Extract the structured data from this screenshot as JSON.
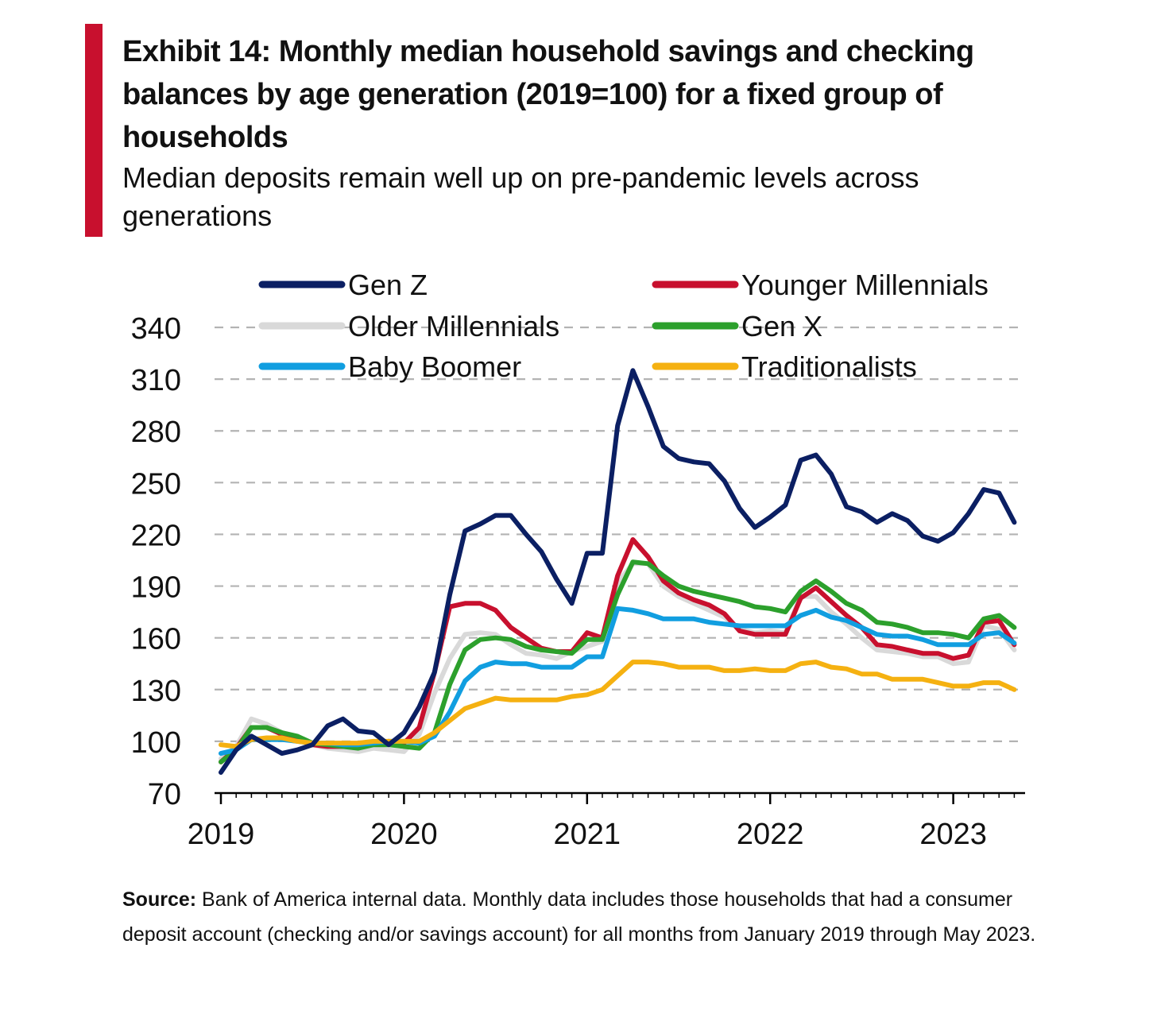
{
  "title": "Exhibit 14: Monthly median household savings and checking balances by age generation (2019=100) for a fixed group of households",
  "subtitle": "Median deposits remain well up on pre-pandemic levels across generations",
  "source_label": "Source:",
  "source_text": "Bank of America internal data. Monthly data includes those households that had a consumer deposit account (checking and/or savings account) for all months from January 2019 through May 2023.",
  "colors": {
    "accent": "#c8102e",
    "grid": "#b3b3b3",
    "axis": "#000000"
  },
  "chart_data": {
    "type": "line",
    "title": "Exhibit 14: Monthly median household savings and checking balances by age generation (2019=100) for a fixed group of households",
    "subtitle": "Median deposits remain well up on pre-pandemic levels across generations",
    "xlabel": "",
    "ylabel": "",
    "ylim": [
      70,
      340
    ],
    "yticks": [
      "70",
      "100",
      "130",
      "160",
      "190",
      "220",
      "250",
      "280",
      "310",
      "340"
    ],
    "xtick_labels": [
      "2019",
      "2020",
      "2021",
      "2022",
      "2023"
    ],
    "grid": "horizontal dashed",
    "legend_position": "top",
    "x": [
      "2019-01",
      "2019-02",
      "2019-03",
      "2019-04",
      "2019-05",
      "2019-06",
      "2019-07",
      "2019-08",
      "2019-09",
      "2019-10",
      "2019-11",
      "2019-12",
      "2020-01",
      "2020-02",
      "2020-03",
      "2020-04",
      "2020-05",
      "2020-06",
      "2020-07",
      "2020-08",
      "2020-09",
      "2020-10",
      "2020-11",
      "2020-12",
      "2021-01",
      "2021-02",
      "2021-03",
      "2021-04",
      "2021-05",
      "2021-06",
      "2021-07",
      "2021-08",
      "2021-09",
      "2021-10",
      "2021-11",
      "2021-12",
      "2022-01",
      "2022-02",
      "2022-03",
      "2022-04",
      "2022-05",
      "2022-06",
      "2022-07",
      "2022-08",
      "2022-09",
      "2022-10",
      "2022-11",
      "2022-12",
      "2023-01",
      "2023-02",
      "2023-03",
      "2023-04",
      "2023-05"
    ],
    "series": [
      {
        "name": "Older Millennials",
        "color": "#d9d9d9",
        "values": [
          90,
          97,
          113,
          110,
          105,
          102,
          98,
          96,
          95,
          94,
          96,
          95,
          94,
          104,
          128,
          148,
          162,
          163,
          162,
          156,
          151,
          150,
          148,
          152,
          155,
          158,
          192,
          203,
          203,
          190,
          184,
          180,
          176,
          172,
          165,
          163,
          164,
          163,
          184,
          184,
          175,
          168,
          160,
          153,
          152,
          151,
          149,
          149,
          145,
          146,
          167,
          165,
          153
        ]
      },
      {
        "name": "Younger Millennials",
        "color": "#c8102e",
        "values": [
          88,
          96,
          108,
          108,
          104,
          101,
          98,
          97,
          97,
          98,
          99,
          100,
          99,
          108,
          140,
          178,
          180,
          180,
          176,
          166,
          160,
          154,
          152,
          152,
          163,
          160,
          196,
          217,
          207,
          193,
          186,
          182,
          179,
          174,
          164,
          162,
          162,
          162,
          183,
          189,
          181,
          173,
          166,
          156,
          155,
          153,
          151,
          151,
          148,
          150,
          169,
          170,
          156
        ]
      },
      {
        "name": "Gen X",
        "color": "#2ca02c",
        "values": [
          88,
          95,
          108,
          108,
          105,
          103,
          99,
          98,
          97,
          96,
          98,
          98,
          97,
          96,
          105,
          133,
          153,
          159,
          160,
          159,
          155,
          153,
          152,
          151,
          159,
          159,
          185,
          204,
          203,
          196,
          190,
          187,
          185,
          183,
          181,
          178,
          177,
          175,
          187,
          193,
          187,
          180,
          176,
          169,
          168,
          166,
          163,
          163,
          162,
          160,
          171,
          173,
          166
        ]
      },
      {
        "name": "Baby Boomer",
        "color": "#119ee0",
        "values": [
          93,
          95,
          101,
          101,
          101,
          100,
          99,
          99,
          98,
          98,
          99,
          100,
          100,
          99,
          103,
          117,
          135,
          143,
          146,
          145,
          145,
          143,
          143,
          143,
          149,
          149,
          177,
          176,
          174,
          171,
          171,
          171,
          169,
          168,
          167,
          167,
          167,
          167,
          173,
          176,
          172,
          170,
          166,
          162,
          161,
          161,
          159,
          156,
          156,
          156,
          162,
          163,
          157
        ]
      },
      {
        "name": "Traditionalists",
        "color": "#f5b111",
        "values": [
          98,
          97,
          101,
          102,
          102,
          100,
          99,
          99,
          99,
          99,
          100,
          100,
          100,
          100,
          105,
          112,
          119,
          122,
          125,
          124,
          124,
          124,
          124,
          126,
          127,
          130,
          138,
          146,
          146,
          145,
          143,
          143,
          143,
          141,
          141,
          142,
          141,
          141,
          145,
          146,
          143,
          142,
          139,
          139,
          136,
          136,
          136,
          134,
          132,
          132,
          134,
          134,
          130
        ]
      },
      {
        "name": "Gen Z",
        "color": "#0b1f63",
        "values": [
          82,
          95,
          103,
          98,
          93,
          95,
          98,
          109,
          113,
          106,
          105,
          98,
          105,
          120,
          140,
          185,
          222,
          226,
          231,
          231,
          220,
          210,
          194,
          180,
          209,
          209,
          283,
          315,
          294,
          271,
          264,
          262,
          261,
          251,
          235,
          224,
          230,
          237,
          263,
          266,
          255,
          236,
          233,
          227,
          232,
          228,
          219,
          216,
          221,
          232,
          246,
          244,
          227
        ]
      }
    ],
    "legend_order": [
      "Gen Z",
      "Younger Millennials",
      "Older Millennials",
      "Gen X",
      "Baby Boomer",
      "Traditionalists"
    ]
  }
}
